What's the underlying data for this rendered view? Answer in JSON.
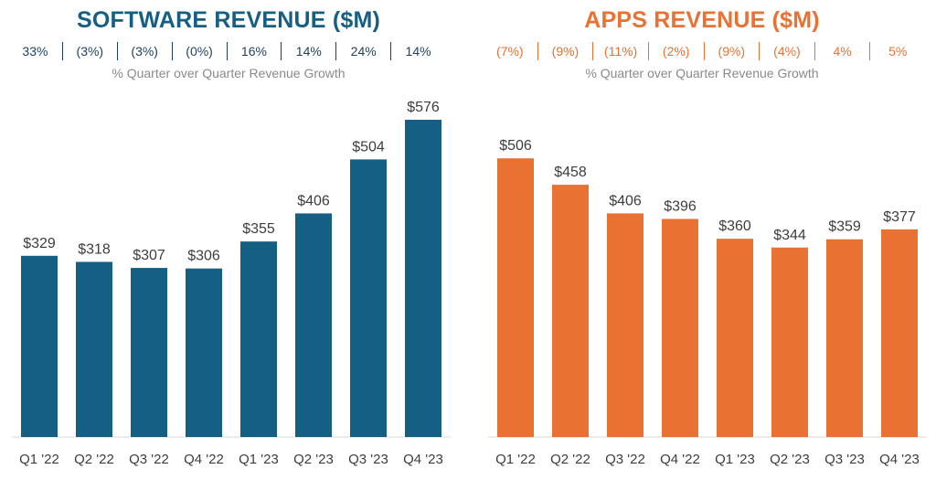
{
  "chart_data": [
    {
      "type": "bar",
      "title": "SOFTWARE REVENUE ($M)",
      "categories": [
        "Q1 '22",
        "Q2 '22",
        "Q3 '22",
        "Q4 '22",
        "Q1 '23",
        "Q2 '23",
        "Q3 '23",
        "Q4 '23"
      ],
      "values": [
        329,
        318,
        307,
        306,
        355,
        406,
        504,
        576
      ],
      "value_labels": [
        "$329",
        "$318",
        "$307",
        "$306",
        "$355",
        "$406",
        "$504",
        "$576"
      ],
      "growth_labels": [
        "33%",
        "(3%)",
        "(3%)",
        "(0%)",
        "16%",
        "14%",
        "24%",
        "14%"
      ],
      "growth_caption": "% Quarter over Quarter Revenue Growth",
      "color": "#155f84",
      "growth_color": "#1f3f5c",
      "ylim": [
        0,
        600
      ],
      "grid": false,
      "legend": "none"
    },
    {
      "type": "bar",
      "title": "APPS REVENUE ($M)",
      "categories": [
        "Q1 '22",
        "Q2 '22",
        "Q3 '22",
        "Q4 '22",
        "Q1 '23",
        "Q2 '23",
        "Q3 '23",
        "Q4 '23"
      ],
      "values": [
        506,
        458,
        406,
        396,
        360,
        344,
        359,
        377
      ],
      "value_labels": [
        "$506",
        "$458",
        "$406",
        "$396",
        "$360",
        "$344",
        "$359",
        "$377"
      ],
      "growth_labels": [
        "(7%)",
        "(9%)",
        "(11%)",
        "(2%)",
        "(9%)",
        "(4%)",
        "4%",
        "5%"
      ],
      "growth_caption": "% Quarter over Quarter Revenue Growth",
      "color": "#e97132",
      "growth_color": "#e97132",
      "ylim": [
        0,
        600
      ],
      "grid": false,
      "legend": "none"
    }
  ]
}
